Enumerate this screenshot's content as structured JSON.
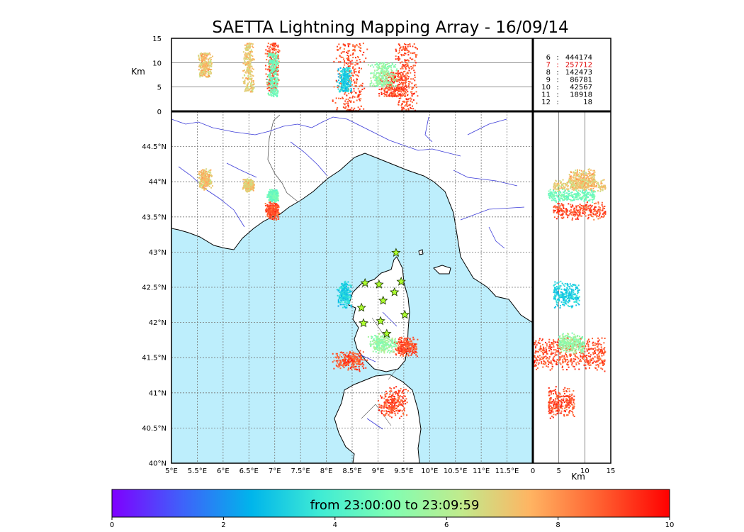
{
  "chart_data": {
    "type": "scatter",
    "title": "SAETTA Lightning Mapping Array - 16/09/14",
    "plan_view": {
      "x_ticks": [
        "5°E",
        "5.5°E",
        "6°E",
        "6.5°E",
        "7°E",
        "7.5°E",
        "8°E",
        "8.5°E",
        "9°E",
        "9.5°E",
        "10°E",
        "10.5°E",
        "11°E",
        "11.5°E"
      ],
      "y_ticks": [
        "40°N",
        "40.5°N",
        "41°N",
        "41.5°N",
        "42°N",
        "42.5°N",
        "43°N",
        "43.5°N",
        "44°N",
        "44.5°N"
      ],
      "xlim": [
        5,
        12
      ],
      "ylim": [
        40,
        45
      ],
      "grid": true
    },
    "altitude_vs_longitude": {
      "ylabel": "Km",
      "y_ticks": [
        "0",
        "5",
        "10",
        "15"
      ],
      "ylim": [
        0,
        15
      ]
    },
    "altitude_vs_latitude": {
      "xlabel": "Km",
      "x_ticks": [
        "0",
        "5",
        "10",
        "15"
      ],
      "xlim": [
        0,
        15
      ]
    },
    "station_stats": [
      {
        "stations": "6",
        "sep": ":",
        "count": "444174",
        "color": "#000000"
      },
      {
        "stations": "7",
        "sep": ":",
        "count": "257712",
        "color": "#e00000"
      },
      {
        "stations": "8",
        "sep": ":",
        "count": "142473",
        "color": "#000000"
      },
      {
        "stations": "9",
        "sep": ":",
        "count": "86781",
        "color": "#000000"
      },
      {
        "stations": "10",
        "sep": ":",
        "count": "42567",
        "color": "#000000"
      },
      {
        "stations": "11",
        "sep": ":",
        "count": "18918",
        "color": "#000000"
      },
      {
        "stations": "12",
        "sep": ":",
        "count": "18",
        "color": "#000000"
      }
    ],
    "sensor_stations": [
      {
        "lon": 9.35,
        "lat": 42.99
      },
      {
        "lon": 8.75,
        "lat": 42.56
      },
      {
        "lon": 9.02,
        "lat": 42.54
      },
      {
        "lon": 9.45,
        "lat": 42.58
      },
      {
        "lon": 9.32,
        "lat": 42.43
      },
      {
        "lon": 9.1,
        "lat": 42.31
      },
      {
        "lon": 8.68,
        "lat": 42.21
      },
      {
        "lon": 9.52,
        "lat": 42.11
      },
      {
        "lon": 8.72,
        "lat": 41.99
      },
      {
        "lon": 9.05,
        "lat": 42.02
      },
      {
        "lon": 9.17,
        "lat": 41.84
      }
    ],
    "clusters": [
      {
        "lon": [
          6.38,
          6.62
        ],
        "lat": [
          43.85,
          44.05
        ],
        "alt": [
          4,
          14
        ],
        "t": [
          6,
          8
        ]
      },
      {
        "lon": [
          6.8,
          7.1
        ],
        "lat": [
          43.45,
          43.72
        ],
        "alt": [
          4,
          14
        ],
        "t": [
          8,
          10
        ]
      },
      {
        "lon": [
          6.85,
          7.1
        ],
        "lat": [
          43.7,
          43.9
        ],
        "alt": [
          3,
          12
        ],
        "t": [
          4,
          5.5
        ]
      },
      {
        "lon": [
          5.5,
          5.8
        ],
        "lat": [
          43.88,
          44.2
        ],
        "alt": [
          7,
          12
        ],
        "t": [
          6,
          8.5
        ]
      },
      {
        "lon": [
          8.1,
          8.8
        ],
        "lat": [
          41.3,
          41.6
        ],
        "alt": [
          0,
          14
        ],
        "t": [
          8,
          10
        ]
      },
      {
        "lon": [
          9.3,
          9.8
        ],
        "lat": [
          41.5,
          41.8
        ],
        "alt": [
          0,
          14
        ],
        "t": [
          8,
          10
        ]
      },
      {
        "lon": [
          8.2,
          8.5
        ],
        "lat": [
          42.2,
          42.6
        ],
        "alt": [
          4,
          9
        ],
        "t": [
          2.2,
          4
        ]
      },
      {
        "lon": [
          9,
          9.6
        ],
        "lat": [
          40.6,
          41.1
        ],
        "alt": [
          3,
          8
        ],
        "t": [
          8,
          10
        ]
      },
      {
        "lon": [
          8.8,
          9.4
        ],
        "lat": [
          41.55,
          41.85
        ],
        "alt": [
          5,
          10
        ],
        "t": [
          4.5,
          6.5
        ]
      }
    ],
    "colorbar": {
      "label": "from 23:00:00 to 23:09:59",
      "ticks": [
        "0",
        "2",
        "4",
        "6",
        "8",
        "10"
      ],
      "range": [
        0,
        10
      ],
      "colors": [
        "#7f00ff",
        "#3f61fa",
        "#00b5eb",
        "#40ecd4",
        "#80feb3",
        "#c0eb8d",
        "#ffb462",
        "#ff6030",
        "#ff0000"
      ]
    },
    "colors": {
      "sea": "#bdeefc",
      "land": "#ffffff",
      "coast": "#000000",
      "rivers": "#3a3ad8",
      "borders": "#555555",
      "grid": "#777777",
      "station_fill": "#adff2f"
    }
  }
}
